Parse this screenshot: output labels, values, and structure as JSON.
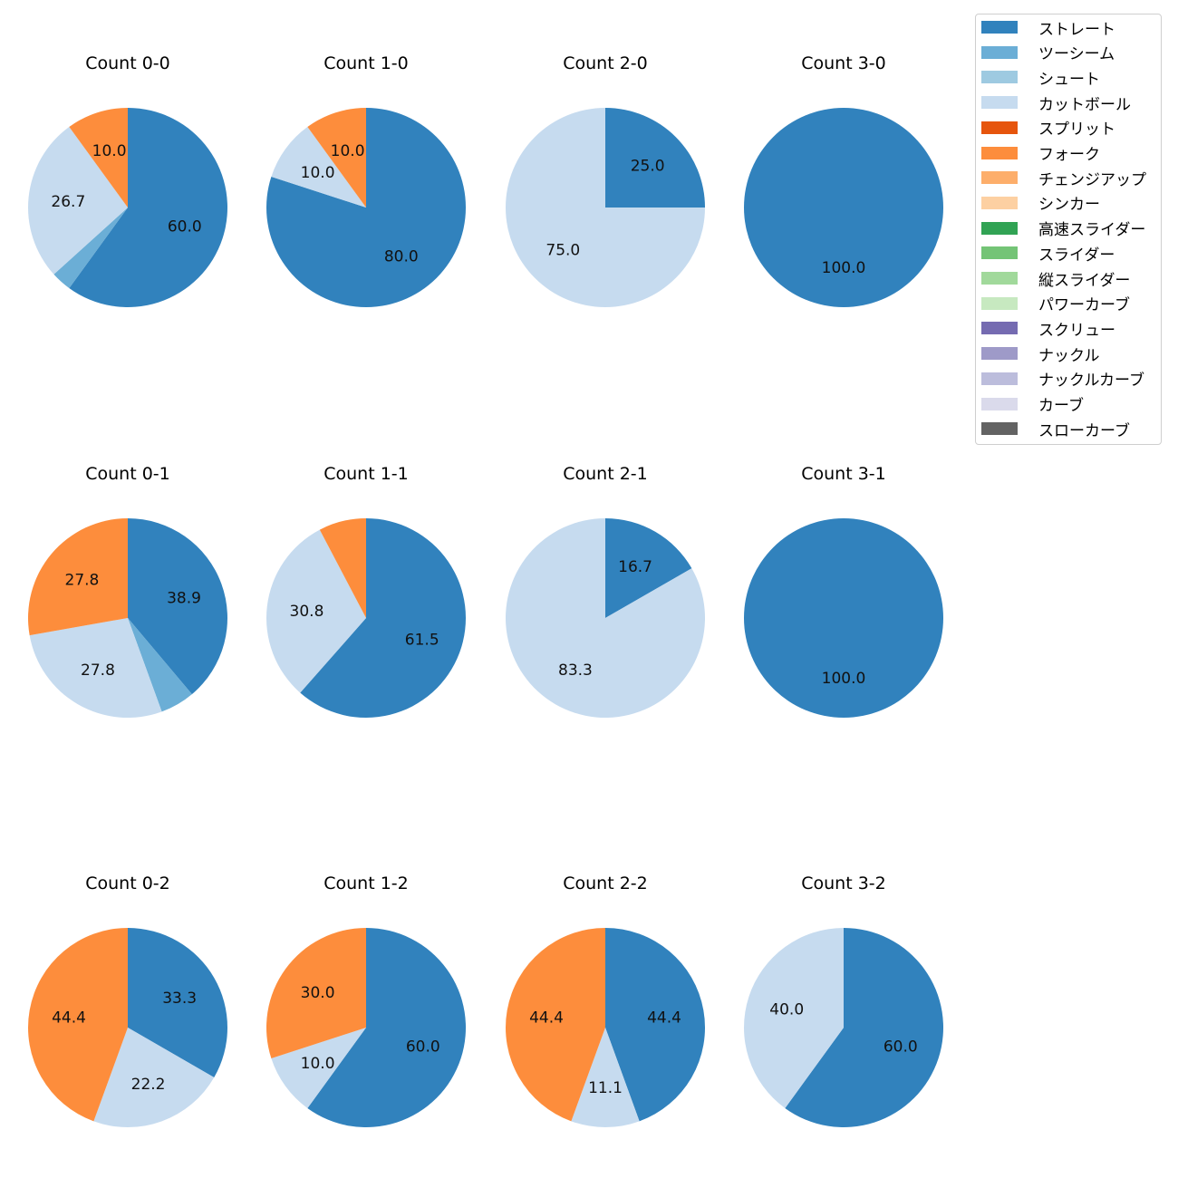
{
  "chart_data": {
    "type": "pie",
    "legend_placement": "top-right",
    "categories": [
      "ストレート",
      "ツーシーム",
      "シュート",
      "カットボール",
      "スプリット",
      "フォーク",
      "チェンジアップ",
      "シンカー",
      "高速スライダー",
      "スライダー",
      "縦スライダー",
      "パワーカーブ",
      "スクリュー",
      "ナックル",
      "ナックルカーブ",
      "カーブ",
      "スローカーブ"
    ],
    "colors": [
      "#3182bd",
      "#6baed6",
      "#9ecae1",
      "#c6dbef",
      "#e6550d",
      "#fd8d3c",
      "#fdae6b",
      "#fdd0a2",
      "#31a354",
      "#74c476",
      "#a1d99b",
      "#c7e9c0",
      "#756bb1",
      "#9e9ac8",
      "#bcbddc",
      "#dadaeb",
      "#636363"
    ],
    "pies": [
      {
        "title": "Count 0-0",
        "slices": [
          {
            "cat": 0,
            "value": 60.0,
            "label": "60.0"
          },
          {
            "cat": 1,
            "value": 3.3,
            "label": ""
          },
          {
            "cat": 3,
            "value": 26.7,
            "label": "26.7"
          },
          {
            "cat": 5,
            "value": 10.0,
            "label": "10.0"
          }
        ]
      },
      {
        "title": "Count 1-0",
        "slices": [
          {
            "cat": 0,
            "value": 80.0,
            "label": "80.0"
          },
          {
            "cat": 3,
            "value": 10.0,
            "label": "10.0"
          },
          {
            "cat": 5,
            "value": 10.0,
            "label": "10.0"
          }
        ]
      },
      {
        "title": "Count 2-0",
        "slices": [
          {
            "cat": 0,
            "value": 25.0,
            "label": "25.0"
          },
          {
            "cat": 3,
            "value": 75.0,
            "label": "75.0"
          }
        ]
      },
      {
        "title": "Count 3-0",
        "slices": [
          {
            "cat": 0,
            "value": 100.0,
            "label": "100.0"
          }
        ]
      },
      {
        "title": "Count 0-1",
        "slices": [
          {
            "cat": 0,
            "value": 38.9,
            "label": "38.9"
          },
          {
            "cat": 1,
            "value": 5.6,
            "label": ""
          },
          {
            "cat": 3,
            "value": 27.8,
            "label": "27.8"
          },
          {
            "cat": 5,
            "value": 27.8,
            "label": "27.8"
          }
        ]
      },
      {
        "title": "Count 1-1",
        "slices": [
          {
            "cat": 0,
            "value": 61.5,
            "label": "61.5"
          },
          {
            "cat": 3,
            "value": 30.8,
            "label": "30.8"
          },
          {
            "cat": 5,
            "value": 7.7,
            "label": ""
          }
        ]
      },
      {
        "title": "Count 2-1",
        "slices": [
          {
            "cat": 0,
            "value": 16.7,
            "label": "16.7"
          },
          {
            "cat": 3,
            "value": 83.3,
            "label": "83.3"
          }
        ]
      },
      {
        "title": "Count 3-1",
        "slices": [
          {
            "cat": 0,
            "value": 100.0,
            "label": "100.0"
          }
        ]
      },
      {
        "title": "Count 0-2",
        "slices": [
          {
            "cat": 0,
            "value": 33.3,
            "label": "33.3"
          },
          {
            "cat": 3,
            "value": 22.2,
            "label": "22.2"
          },
          {
            "cat": 5,
            "value": 44.4,
            "label": "44.4"
          }
        ]
      },
      {
        "title": "Count 1-2",
        "slices": [
          {
            "cat": 0,
            "value": 60.0,
            "label": "60.0"
          },
          {
            "cat": 3,
            "value": 10.0,
            "label": "10.0"
          },
          {
            "cat": 5,
            "value": 30.0,
            "label": "30.0"
          }
        ]
      },
      {
        "title": "Count 2-2",
        "slices": [
          {
            "cat": 0,
            "value": 44.4,
            "label": "44.4"
          },
          {
            "cat": 3,
            "value": 11.1,
            "label": "11.1"
          },
          {
            "cat": 5,
            "value": 44.4,
            "label": "44.4"
          }
        ]
      },
      {
        "title": "Count 3-2",
        "slices": [
          {
            "cat": 0,
            "value": 60.0,
            "label": "60.0"
          },
          {
            "cat": 3,
            "value": 40.0,
            "label": "40.0"
          }
        ]
      }
    ]
  }
}
